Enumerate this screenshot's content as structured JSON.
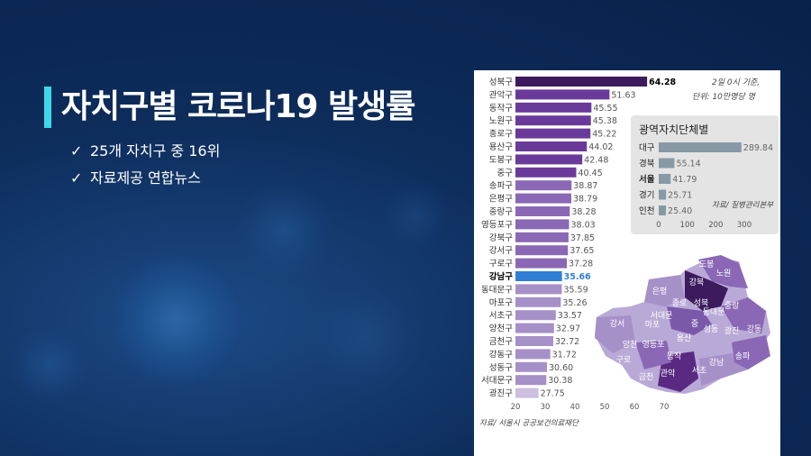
{
  "slide": {
    "title": "자치구별 코로나19 발생률",
    "bullets": [
      {
        "check": "✓",
        "text": "25개 자치구 중 16위"
      },
      {
        "check": "✓",
        "text": "자료제공 연합뉴스"
      }
    ]
  },
  "chart_note": {
    "line1": "2일 0시 기준,",
    "line2": "단위: 10만명당 명"
  },
  "colors": {
    "bar_top": "#3d1a5e",
    "bar_dark": "#6a3a9a",
    "bar_mid": "#8a68b5",
    "bar_light": "#a690c8",
    "bar_last": "#cdbfe0",
    "highlight": "#2f7fd6",
    "inset_bar": "#8899a6"
  },
  "chart_data": [
    {
      "type": "bar",
      "orientation": "horizontal",
      "categories": [
        "성북구",
        "관악구",
        "동작구",
        "노원구",
        "종로구",
        "용산구",
        "도봉구",
        "중구",
        "송파구",
        "은평구",
        "중랑구",
        "영등포구",
        "강북구",
        "강서구",
        "구로구",
        "강남구",
        "동대문구",
        "마포구",
        "서초구",
        "양천구",
        "금천구",
        "강동구",
        "성동구",
        "서대문구",
        "광진구"
      ],
      "values": [
        64.28,
        51.63,
        45.55,
        45.38,
        45.22,
        44.02,
        42.48,
        40.45,
        38.87,
        38.79,
        38.28,
        38.03,
        37.85,
        37.65,
        37.28,
        35.66,
        35.59,
        35.26,
        33.57,
        32.97,
        32.72,
        31.72,
        30.6,
        30.38,
        27.75
      ],
      "value_labels": [
        "64.28",
        "51.63",
        "45.55",
        "45.38",
        "45.22",
        "44.02",
        "42.48",
        "40.45",
        "38.87",
        "38.79",
        "38.28",
        "38.03",
        "37.85",
        "37.65",
        "37.28",
        "35.66",
        "35.59",
        "35.26",
        "33.57",
        "32.97",
        "32.72",
        "31.72",
        "30.60",
        "30.38",
        "27.75"
      ],
      "highlight": "강남구",
      "x_ticks": [
        "20",
        "30",
        "40",
        "50",
        "60",
        "70"
      ],
      "xlim": [
        20,
        70
      ],
      "source": "자료/ 서울시 공공보건의료재단"
    },
    {
      "type": "bar",
      "orientation": "horizontal",
      "title": "광역자치단체별",
      "categories": [
        "대구",
        "경북",
        "서울",
        "경기",
        "인천"
      ],
      "values": [
        289.84,
        55.14,
        41.79,
        25.71,
        25.4
      ],
      "value_labels": [
        "289.84",
        "55.14",
        "41.79",
        "25.71",
        "25.40"
      ],
      "bold_category": "서울",
      "x_ticks": [
        "0",
        "100",
        "200",
        "300"
      ],
      "xlim": [
        0,
        300
      ],
      "source": "자료/ 질병관리본부"
    }
  ],
  "map": {
    "labels": [
      "도봉",
      "노원",
      "강북",
      "은평",
      "성북",
      "종로",
      "중랑",
      "서대문",
      "동대문",
      "마포",
      "중",
      "성동",
      "광진",
      "강동",
      "강서",
      "양천",
      "영등포",
      "용산",
      "구로",
      "동작",
      "송파",
      "강남",
      "금천",
      "관악",
      "서초"
    ]
  }
}
